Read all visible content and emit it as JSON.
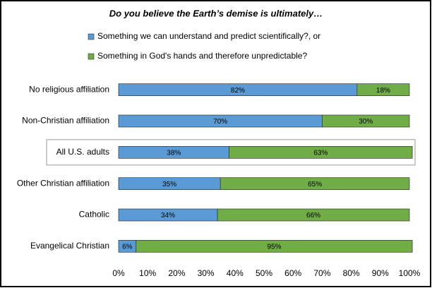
{
  "chart_data": {
    "type": "stacked-bar-horizontal",
    "title": "Do you believe the Earth’s demise is ultimately…",
    "categories": [
      "No religious affiliation",
      "Non-Christian affiliation",
      "All U.S. adults",
      "Other Christian affiliation",
      "Catholic",
      "Evangelical Christian"
    ],
    "highlight": "All U.S. adults",
    "series": [
      {
        "name": "Something we can understand and predict scientifically?, or",
        "color": "#5b9bd5",
        "values": [
          82,
          70,
          38,
          35,
          34,
          6
        ],
        "value_labels": [
          "82%",
          "70%",
          "38%",
          "35%",
          "34%",
          "6%"
        ]
      },
      {
        "name": "Something in God's hands and therefore unpredictable?",
        "color": "#70ad47",
        "values": [
          18,
          30,
          63,
          65,
          66,
          95
        ],
        "value_labels": [
          "18%",
          "30%",
          "63%",
          "65%",
          "66%",
          "95%"
        ]
      }
    ],
    "xlim": [
      0,
      100
    ],
    "xticks": [
      {
        "value": 0,
        "label": "0%"
      },
      {
        "value": 10,
        "label": "10%"
      },
      {
        "value": 20,
        "label": "20%"
      },
      {
        "value": 30,
        "label": "30%"
      },
      {
        "value": 40,
        "label": "40%"
      },
      {
        "value": 50,
        "label": "50%"
      },
      {
        "value": 60,
        "label": "60%"
      },
      {
        "value": 70,
        "label": "70%"
      },
      {
        "value": 80,
        "label": "80%"
      },
      {
        "value": 90,
        "label": "90%"
      },
      {
        "value": 100,
        "label": "100%"
      }
    ],
    "grid": false
  }
}
